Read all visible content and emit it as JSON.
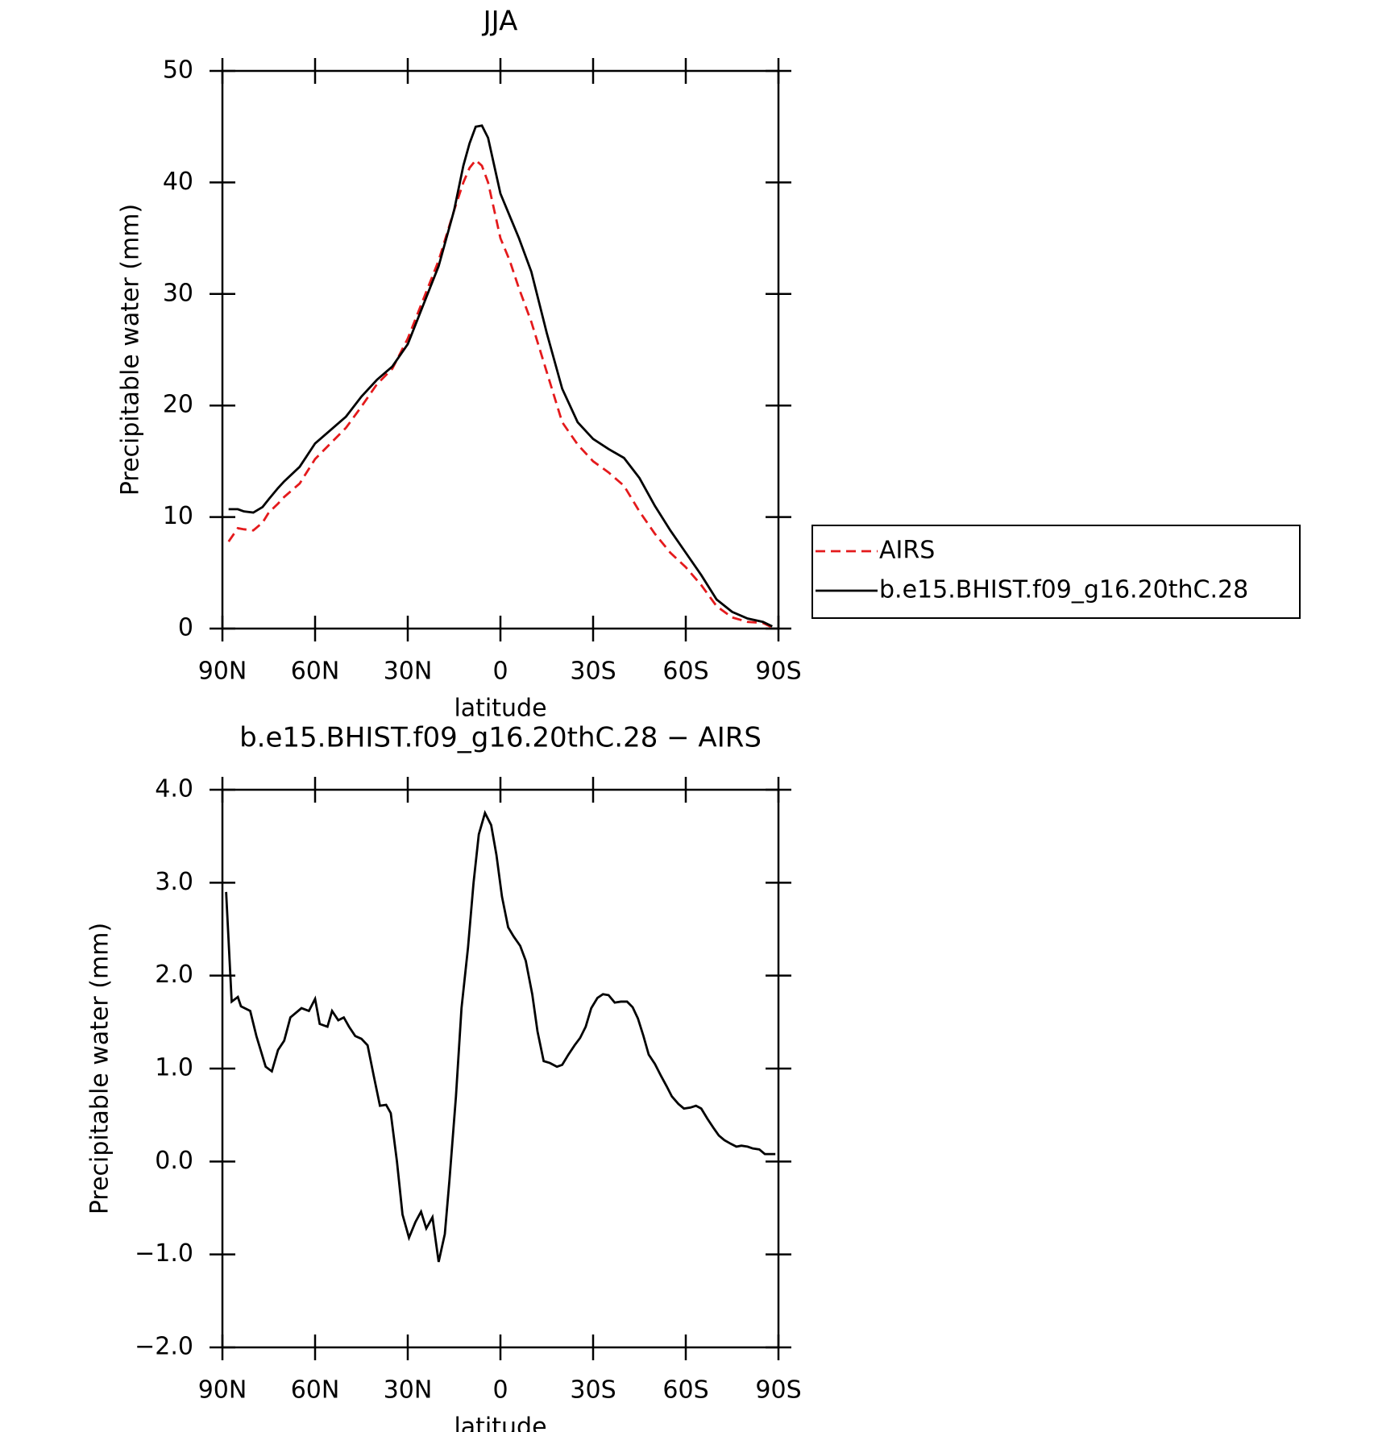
{
  "chart_data": [
    {
      "type": "line",
      "title": "JJA",
      "xlabel": "latitude",
      "ylabel": "Precipitable water (mm)",
      "xlim": [
        90,
        -90
      ],
      "ylim": [
        0,
        50
      ],
      "xticks": [
        {
          "value": 90,
          "label": "90N"
        },
        {
          "value": 60,
          "label": "60N"
        },
        {
          "value": 30,
          "label": "30N"
        },
        0,
        {
          "value": -30,
          "label": "30S"
        },
        {
          "value": -60,
          "label": "60S"
        },
        {
          "value": -90,
          "label": "90S"
        }
      ],
      "yticks": [
        0,
        10,
        20,
        30,
        40,
        50
      ],
      "x": [
        88,
        85,
        83,
        80,
        77,
        75,
        72,
        70,
        65,
        60,
        55,
        50,
        45,
        40,
        35,
        30,
        25,
        20,
        15,
        12,
        10,
        8,
        6,
        4,
        2,
        0,
        -3,
        -6,
        -10,
        -15,
        -20,
        -25,
        -30,
        -35,
        -40,
        -45,
        -50,
        -55,
        -60,
        -65,
        -70,
        -75,
        -80,
        -85,
        -88
      ],
      "series": [
        {
          "name": "AIRS",
          "color": "#e41a1c",
          "dashed": true,
          "values": [
            7.8,
            9.0,
            8.9,
            8.8,
            9.5,
            10.4,
            11.2,
            11.8,
            13.0,
            15.2,
            16.6,
            18.0,
            19.9,
            21.9,
            23.3,
            26.0,
            29.5,
            33.0,
            37.5,
            40.0,
            41.3,
            42.0,
            41.5,
            40.0,
            37.5,
            35.0,
            33.0,
            30.5,
            27.5,
            23.0,
            18.5,
            16.5,
            15.0,
            14.0,
            12.8,
            10.5,
            8.5,
            6.8,
            5.5,
            3.9,
            2.0,
            1.0,
            0.6,
            0.5,
            0.1
          ]
        },
        {
          "name": "b.e15.BHIST.f09_g16.20thC.28",
          "color": "#000000",
          "dashed": false,
          "values": [
            10.7,
            10.7,
            10.5,
            10.4,
            10.9,
            11.6,
            12.6,
            13.2,
            14.5,
            16.6,
            17.8,
            19.0,
            20.8,
            22.3,
            23.5,
            25.5,
            29.0,
            32.5,
            37.5,
            41.5,
            43.5,
            45.0,
            45.1,
            44.0,
            41.5,
            39.0,
            37.0,
            35.0,
            32.0,
            26.5,
            21.5,
            18.5,
            17.0,
            16.1,
            15.3,
            13.5,
            11.0,
            8.8,
            6.8,
            4.8,
            2.6,
            1.5,
            0.9,
            0.6,
            0.2
          ]
        }
      ]
    },
    {
      "type": "line",
      "title": "b.e15.BHIST.f09_g16.20thC.28 − AIRS",
      "xlabel": "latitude",
      "ylabel": "Precipitable water (mm)",
      "xlim": [
        90,
        -90
      ],
      "ylim": [
        -2,
        4
      ],
      "xticks": [
        {
          "value": 90,
          "label": "90N"
        },
        {
          "value": 60,
          "label": "60N"
        },
        {
          "value": 30,
          "label": "30N"
        },
        0,
        {
          "value": -30,
          "label": "30S"
        },
        {
          "value": -60,
          "label": "60S"
        },
        {
          "value": -90,
          "label": "90S"
        }
      ],
      "yticks": [
        {
          "value": -2,
          "label": "−2.0"
        },
        {
          "value": -1,
          "label": "−1.0"
        },
        {
          "value": 0,
          "label": "0.0"
        },
        {
          "value": 1,
          "label": "1.0"
        },
        {
          "value": 2,
          "label": "2.0"
        },
        {
          "value": 3,
          "label": "3.0"
        },
        {
          "value": 4,
          "label": "4.0"
        }
      ],
      "color": "#000000",
      "x": [
        88.8,
        87,
        85,
        84,
        81,
        79,
        76,
        74,
        72,
        70,
        68,
        64.4,
        62,
        60,
        58.5,
        56,
        54.5,
        52.5,
        50.7,
        49,
        47,
        45,
        43,
        41,
        39,
        37,
        35.5,
        33.5,
        31.7,
        29.6,
        27.5,
        25.7,
        24,
        22,
        20,
        18,
        16.5,
        14.4,
        12.6,
        10.5,
        8.7,
        7,
        5,
        3,
        1.3,
        -0.5,
        -2.5,
        -4.3,
        -6.4,
        -8.2,
        -10.3,
        -12,
        -14,
        -16,
        -18.3,
        -20,
        -22,
        -24,
        -25.8,
        -27.6,
        -29.4,
        -31.4,
        -33.2,
        -35,
        -37,
        -39,
        -41,
        -42.8,
        -44.5,
        -46.3,
        -48,
        -50,
        -52,
        -53.8,
        -55.5,
        -57.6,
        -59.4,
        -61.5,
        -63.3,
        -65,
        -67,
        -69,
        -70.7,
        -72.5,
        -74.6,
        -76.4,
        -78,
        -80,
        -81.7,
        -83.8,
        -85.6,
        -87.4,
        -89
      ],
      "values": [
        2.9,
        1.72,
        1.77,
        1.67,
        1.62,
        1.35,
        1.02,
        0.97,
        1.2,
        1.3,
        1.55,
        1.65,
        1.62,
        1.75,
        1.48,
        1.45,
        1.62,
        1.52,
        1.55,
        1.45,
        1.35,
        1.32,
        1.25,
        0.92,
        0.6,
        0.61,
        0.52,
        0.0,
        -0.57,
        -0.82,
        -0.65,
        -0.54,
        -0.72,
        -0.6,
        -1.08,
        -0.78,
        -0.2,
        0.7,
        1.65,
        2.3,
        3.0,
        3.52,
        3.75,
        3.62,
        3.3,
        2.85,
        2.52,
        2.42,
        2.32,
        2.16,
        1.8,
        1.4,
        1.08,
        1.06,
        1.02,
        1.04,
        1.15,
        1.25,
        1.33,
        1.45,
        1.65,
        1.76,
        1.8,
        1.79,
        1.71,
        1.72,
        1.72,
        1.66,
        1.54,
        1.35,
        1.15,
        1.05,
        0.92,
        0.81,
        0.7,
        0.62,
        0.57,
        0.58,
        0.6,
        0.57,
        0.46,
        0.36,
        0.28,
        0.23,
        0.19,
        0.16,
        0.17,
        0.16,
        0.14,
        0.13,
        0.08,
        0.08,
        0.08
      ]
    }
  ]
}
